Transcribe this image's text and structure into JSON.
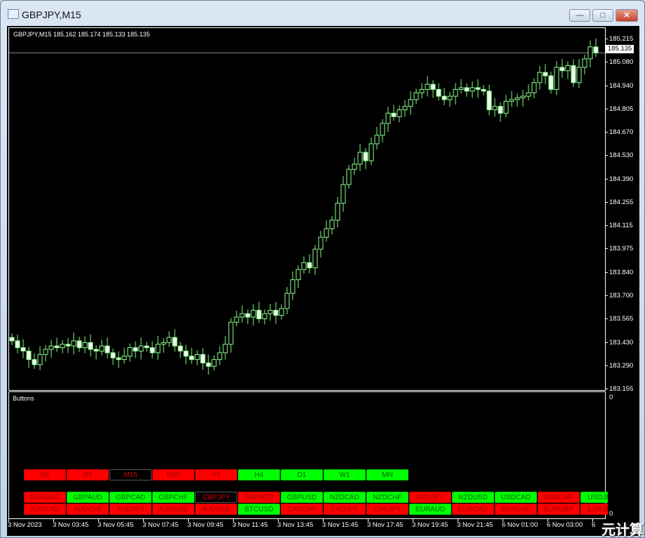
{
  "window": {
    "title": "GBPJPY,M15",
    "minimize": "—",
    "maximize": "□",
    "close": "✕"
  },
  "chart": {
    "info": "GBPJPY,M15  185.162 185.174 185.133 185.135",
    "current_price": "185.135",
    "bull_color": "#90ff90",
    "bear_color": "#e8ffe8",
    "y_labels": [
      "185.215",
      "185.080",
      "184.940",
      "184.805",
      "184.670",
      "184.530",
      "184.390",
      "184.255",
      "184.115",
      "183.975",
      "183.840",
      "183.700",
      "183.565",
      "183.430",
      "183.290",
      "183.155"
    ],
    "y_range": [
      183.155,
      185.215
    ],
    "closes": [
      183.44,
      183.4,
      183.38,
      183.33,
      183.3,
      183.36,
      183.39,
      183.41,
      183.4,
      183.42,
      183.41,
      183.44,
      183.4,
      183.43,
      183.39,
      183.38,
      183.41,
      183.37,
      183.34,
      183.33,
      183.35,
      183.4,
      183.38,
      183.41,
      183.4,
      183.37,
      183.42,
      183.43,
      183.46,
      183.41,
      183.38,
      183.35,
      183.33,
      183.36,
      183.31,
      183.29,
      183.33,
      183.37,
      183.42,
      183.55,
      183.58,
      183.6,
      183.58,
      183.62,
      183.57,
      183.6,
      183.62,
      183.59,
      183.63,
      183.72,
      183.8,
      183.86,
      183.9,
      183.87,
      183.98,
      184.05,
      184.1,
      184.15,
      184.25,
      184.36,
      184.45,
      184.48,
      184.55,
      184.5,
      184.6,
      184.65,
      184.72,
      184.78,
      184.76,
      184.8,
      184.82,
      184.86,
      184.9,
      184.92,
      184.95,
      184.92,
      184.88,
      184.86,
      184.88,
      184.92,
      184.93,
      184.91,
      184.93,
      184.92,
      184.91,
      184.8,
      184.82,
      184.78,
      184.85,
      184.86,
      184.87,
      184.88,
      184.9,
      184.96,
      185.02,
      185.0,
      184.92,
      185.05,
      185.03,
      185.06,
      184.96,
      185.05,
      185.1,
      185.17,
      185.135
    ]
  },
  "indicator": {
    "label": "Buttons",
    "axis_top": "0",
    "axis_bottom": "0",
    "timeframes": [
      {
        "label": "M1",
        "state": "red"
      },
      {
        "label": "M5",
        "state": "red"
      },
      {
        "label": "M15",
        "state": "black"
      },
      {
        "label": "M30",
        "state": "red"
      },
      {
        "label": "H1",
        "state": "red"
      },
      {
        "label": "H4",
        "state": "green"
      },
      {
        "label": "D1",
        "state": "green"
      },
      {
        "label": "W1",
        "state": "green"
      },
      {
        "label": "MN",
        "state": "green"
      }
    ],
    "symbols_row1": [
      {
        "label": "EURUSD",
        "state": "red"
      },
      {
        "label": "GBPAUD",
        "state": "green"
      },
      {
        "label": "GBPCAD",
        "state": "green"
      },
      {
        "label": "GBPCHF",
        "state": "green"
      },
      {
        "label": "GBPJPY",
        "state": "black"
      },
      {
        "label": "GBPNZD",
        "state": "red"
      },
      {
        "label": "GBPUSD",
        "state": "green"
      },
      {
        "label": "NZDCAD",
        "state": "green"
      },
      {
        "label": "NZDCHF",
        "state": "green"
      },
      {
        "label": "NZDJPY",
        "state": "red"
      },
      {
        "label": "NZDUSD",
        "state": "green"
      },
      {
        "label": "USDCAD",
        "state": "green"
      },
      {
        "label": "USDCHF",
        "state": "red"
      },
      {
        "label": "USDJPY",
        "state": "green"
      }
    ],
    "symbols_row2": [
      {
        "label": "AUDCAD",
        "state": "red"
      },
      {
        "label": "AUDCHF",
        "state": "red"
      },
      {
        "label": "AUDJPY",
        "state": "red"
      },
      {
        "label": "AUDNZD",
        "state": "red"
      },
      {
        "label": "AUDUSD",
        "state": "red"
      },
      {
        "label": "BTCUSD",
        "state": "green"
      },
      {
        "label": "CADCHF",
        "state": "red"
      },
      {
        "label": "CADJPY",
        "state": "red"
      },
      {
        "label": "CHFJPY",
        "state": "red"
      },
      {
        "label": "EURAUD",
        "state": "green"
      },
      {
        "label": "EURCAD",
        "state": "red"
      },
      {
        "label": "EURCHF",
        "state": "red"
      },
      {
        "label": "EURGBP",
        "state": "red"
      },
      {
        "label": "EURJPY",
        "state": "red"
      }
    ]
  },
  "x_labels": [
    "3 Nov 2023",
    "3 Nov 03:45",
    "3 Nov 05:45",
    "3 Nov 07:45",
    "3 Nov 09:45",
    "3 Nov 11:45",
    "3 Nov 13:45",
    "3 Nov 15:45",
    "3 Nov 17:45",
    "3 Nov 19:45",
    "3 Nov 21:45",
    "6 Nov 01:00",
    "6 Nov 03:00",
    "6"
  ],
  "watermark": "元计算"
}
